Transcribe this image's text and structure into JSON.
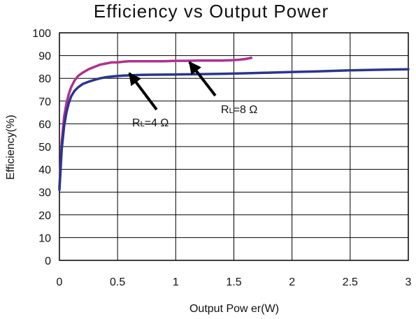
{
  "chart_data": {
    "type": "line",
    "title": "Efficiency vs Output Power",
    "xlabel": "Output Pow er(W)",
    "ylabel": "Efficiency(%)",
    "xlim": [
      0,
      3
    ],
    "ylim": [
      0,
      100
    ],
    "grid": true,
    "xticks": [
      {
        "value": 0,
        "label": "0"
      },
      {
        "value": 0.5,
        "label": "0.5"
      },
      {
        "value": 1,
        "label": "1"
      },
      {
        "value": 1.5,
        "label": "1.5"
      },
      {
        "value": 2,
        "label": "2"
      },
      {
        "value": 2.5,
        "label": "2.5"
      },
      {
        "value": 3,
        "label": "3"
      }
    ],
    "yticks": [
      {
        "value": 0,
        "label": "0"
      },
      {
        "value": 10,
        "label": "10"
      },
      {
        "value": 20,
        "label": "20"
      },
      {
        "value": 30,
        "label": "30"
      },
      {
        "value": 40,
        "label": "40"
      },
      {
        "value": 50,
        "label": "50"
      },
      {
        "value": 60,
        "label": "60"
      },
      {
        "value": 70,
        "label": "70"
      },
      {
        "value": 80,
        "label": "80"
      },
      {
        "value": 90,
        "label": "90"
      },
      {
        "value": 100,
        "label": "100"
      }
    ],
    "series": [
      {
        "key": "rl8",
        "color": "#b0308f",
        "x": [
          0.0,
          0.02,
          0.04,
          0.06,
          0.08,
          0.1,
          0.13,
          0.16,
          0.2,
          0.25,
          0.3,
          0.35,
          0.4,
          0.45,
          0.5,
          0.55,
          0.6,
          0.7,
          0.8,
          0.9,
          1.0,
          1.1,
          1.2,
          1.3,
          1.4,
          1.5,
          1.55,
          1.6,
          1.65
        ],
        "y": [
          32,
          52,
          63,
          69,
          73,
          76,
          79,
          81,
          82.5,
          84,
          85,
          86,
          86.5,
          87,
          87,
          87.3,
          87.5,
          87.5,
          87.5,
          87.5,
          87.7,
          87.7,
          87.8,
          87.8,
          87.8,
          88,
          88.2,
          88.5,
          89
        ]
      },
      {
        "key": "rl4",
        "color": "#2b3590",
        "x": [
          0.0,
          0.02,
          0.04,
          0.06,
          0.08,
          0.1,
          0.13,
          0.16,
          0.2,
          0.25,
          0.3,
          0.35,
          0.4,
          0.45,
          0.5,
          0.55,
          0.6,
          0.7,
          0.8,
          1.0,
          1.2,
          1.4,
          1.6,
          1.8,
          2.0,
          2.2,
          2.5,
          2.8,
          3.0
        ],
        "y": [
          31,
          49,
          59,
          65,
          69,
          72,
          74.5,
          76,
          77.5,
          78.5,
          79.3,
          80,
          80.5,
          80.8,
          81,
          81.2,
          81.3,
          81.5,
          81.6,
          81.7,
          81.8,
          82,
          82.2,
          82.5,
          82.8,
          83,
          83.5,
          83.8,
          84
        ]
      }
    ],
    "annotations": [
      {
        "text_main": "R",
        "text_sub": "L",
        "text_rest": "=8 Ω",
        "series": "rl8"
      },
      {
        "text_main": "R",
        "text_sub": "L",
        "text_rest": "=4 Ω",
        "series": "rl4"
      }
    ]
  }
}
